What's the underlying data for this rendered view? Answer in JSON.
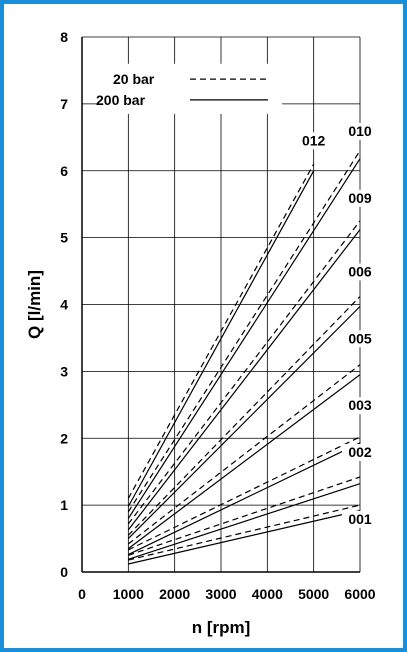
{
  "chart_data": {
    "type": "line",
    "xlabel": "n [rpm]",
    "ylabel": "Q [l/min]",
    "xlim": [
      0,
      6000
    ],
    "ylim": [
      0,
      8
    ],
    "x_ticks": [
      "0",
      "1000",
      "2000",
      "3000",
      "4000",
      "5000",
      "6000"
    ],
    "y_ticks": [
      "0",
      "1",
      "2",
      "3",
      "4",
      "5",
      "6",
      "7",
      "8"
    ],
    "grid": true,
    "legend": {
      "position": "top-left",
      "entries": [
        {
          "label": "20 bar",
          "style": "dashed"
        },
        {
          "label": "200 bar",
          "style": "solid"
        }
      ]
    },
    "series": [
      {
        "name": "001",
        "pressure": "20 bar",
        "x": [
          1000,
          6000
        ],
        "y": [
          0.18,
          1.0
        ]
      },
      {
        "name": "001",
        "pressure": "200 bar",
        "x": [
          1000,
          6000
        ],
        "y": [
          0.12,
          0.92
        ]
      },
      {
        "name": "",
        "pressure": "20 bar",
        "x": [
          1000,
          6000
        ],
        "y": [
          0.25,
          1.42
        ]
      },
      {
        "name": "",
        "pressure": "200 bar",
        "x": [
          1000,
          6000
        ],
        "y": [
          0.19,
          1.32
        ]
      },
      {
        "name": "002",
        "pressure": "20 bar",
        "x": [
          1000,
          6000
        ],
        "y": [
          0.33,
          2.02
        ]
      },
      {
        "name": "002",
        "pressure": "200 bar",
        "x": [
          1000,
          6000
        ],
        "y": [
          0.26,
          1.93
        ]
      },
      {
        "name": "003",
        "pressure": "20 bar",
        "x": [
          1000,
          6000
        ],
        "y": [
          0.42,
          3.1
        ]
      },
      {
        "name": "003",
        "pressure": "200 bar",
        "x": [
          1000,
          6000
        ],
        "y": [
          0.35,
          2.95
        ]
      },
      {
        "name": "005",
        "pressure": "20 bar",
        "x": [
          1000,
          6000
        ],
        "y": [
          0.55,
          4.12
        ]
      },
      {
        "name": "005",
        "pressure": "200 bar",
        "x": [
          1000,
          6000
        ],
        "y": [
          0.5,
          3.97
        ]
      },
      {
        "name": "006",
        "pressure": "20 bar",
        "x": [
          1000,
          6000
        ],
        "y": [
          0.72,
          5.25
        ]
      },
      {
        "name": "006",
        "pressure": "200 bar",
        "x": [
          1000,
          6000
        ],
        "y": [
          0.63,
          5.12
        ]
      },
      {
        "name": "009",
        "pressure": "20 bar",
        "x": [
          1000,
          6000
        ],
        "y": [
          0.9,
          6.3
        ]
      },
      {
        "name": "009",
        "pressure": "200 bar",
        "x": [
          1000,
          6000
        ],
        "y": [
          0.8,
          6.18
        ]
      },
      {
        "name": "012",
        "pressure": "20 bar",
        "x": [
          1000,
          5000
        ],
        "y": [
          1.1,
          6.1
        ]
      },
      {
        "name": "012",
        "pressure": "200 bar",
        "x": [
          1000,
          5000
        ],
        "y": [
          0.98,
          6.0
        ]
      }
    ],
    "curve_labels": [
      {
        "text": "001",
        "x": 6000,
        "y": 0.72
      },
      {
        "text": "002",
        "x": 6000,
        "y": 1.72
      },
      {
        "text": "003",
        "x": 6000,
        "y": 2.42
      },
      {
        "text": "005",
        "x": 6000,
        "y": 3.42
      },
      {
        "text": "006",
        "x": 6000,
        "y": 4.42
      },
      {
        "text": "009",
        "x": 6000,
        "y": 5.52
      },
      {
        "text": "010",
        "x": 6000,
        "y": 6.52
      },
      {
        "text": "012",
        "x": 5000,
        "y": 6.38
      }
    ],
    "colors": {
      "line": "#000000",
      "frame": "#1a8ed6",
      "background": "#ffffff"
    }
  }
}
